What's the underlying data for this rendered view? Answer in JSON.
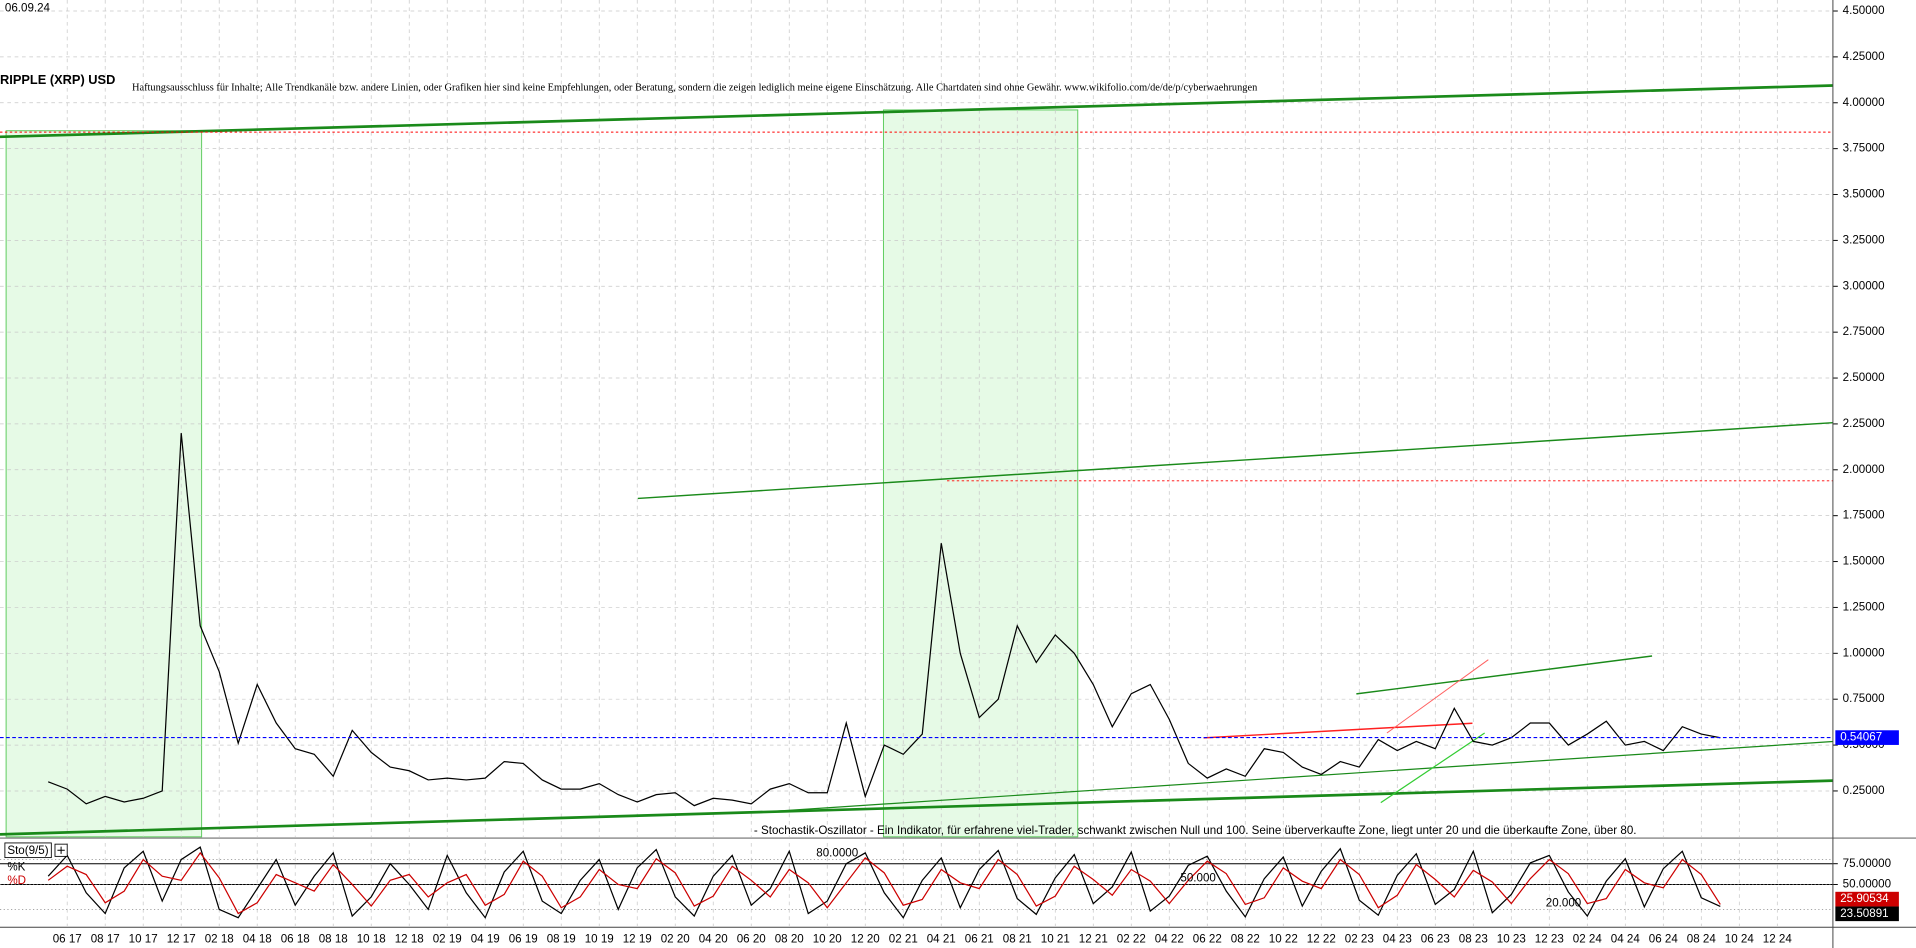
{
  "chart_data": [
    {
      "type": "line",
      "title": "RIPPLE (XRP) USD",
      "date": "06.09.24",
      "disclaimer": "Haftungsausschluss für Inhalte; Alle Trendkanäle bzw. andere Linien, oder Grafiken hier sind keine Empfehlungen, oder Beratung, sondern die zeigen lediglich meine eigene Einschätzung. Alle Chartdaten sind ohne Gewähr.  www.wikifolio.com/de/de/p/cyberwaehrungen",
      "annotation": "- Stochastik-Oszillator - Ein Indikator, für erfahrene viel-Trader, schwankt zwischen Null und 100. Seine überverkaufte Zone, liegt unter 20 und die überkaufte Zone, über 80.",
      "categories": [
        null,
        "06 17",
        null,
        "08 17",
        null,
        "10 17",
        null,
        "12 17",
        null,
        "02 18",
        null,
        "04 18",
        null,
        "06 18",
        null,
        "08 18",
        null,
        "10 18",
        null,
        "12 18",
        null,
        "02 19",
        null,
        "04 19",
        null,
        "06 19",
        null,
        "08 19",
        null,
        "10 19",
        null,
        "12 19",
        null,
        "02 20",
        null,
        "04 20",
        null,
        "06 20",
        null,
        "08 20",
        null,
        "10 20",
        null,
        "12 20",
        null,
        "02 21",
        null,
        "04 21",
        null,
        "06 21",
        null,
        "08 21",
        null,
        "10 21",
        null,
        "12 21",
        null,
        "02 22",
        null,
        "04 22",
        null,
        "06 22",
        null,
        "08 22",
        null,
        "10 22",
        null,
        "12 22",
        null,
        "02 23",
        null,
        "04 23",
        null,
        "06 23",
        null,
        "08 23",
        null,
        "10 23",
        null,
        "12 23",
        null,
        "02 24",
        null,
        "04 24",
        null,
        "06 24",
        null,
        "08 24",
        null,
        "10 24",
        null,
        "12 24"
      ],
      "series": [
        {
          "color": "#000000",
          "values": [
            0.3,
            0.26,
            0.18,
            0.22,
            0.19,
            0.21,
            0.25,
            2.2,
            1.15,
            0.9,
            0.51,
            0.83,
            0.62,
            0.48,
            0.45,
            0.33,
            0.58,
            0.46,
            0.38,
            0.36,
            0.31,
            0.32,
            0.31,
            0.32,
            0.41,
            0.4,
            0.31,
            0.26,
            0.26,
            0.29,
            0.23,
            0.19,
            0.23,
            0.24,
            0.17,
            0.21,
            0.2,
            0.18,
            0.26,
            0.29,
            0.24,
            0.24,
            0.62,
            0.22,
            0.5,
            0.45,
            0.56,
            1.6,
            1.0,
            0.65,
            0.75,
            1.15,
            0.95,
            1.1,
            1.0,
            0.83,
            0.6,
            0.78,
            0.83,
            0.64,
            0.4,
            0.32,
            0.37,
            0.33,
            0.48,
            0.46,
            0.38,
            0.34,
            0.41,
            0.38,
            0.53,
            0.47,
            0.52,
            0.48,
            0.7,
            0.52,
            0.5,
            0.54,
            0.62,
            0.62,
            0.5,
            0.56,
            0.63,
            0.5,
            0.52,
            0.47,
            0.6,
            0.56,
            0.54,
            null,
            null,
            null
          ]
        }
      ],
      "ylim": [
        0,
        4.56
      ],
      "yticks": [
        {
          "value": 0.25,
          "label": "0.25000"
        },
        {
          "value": 0.5,
          "label": "0.50000"
        },
        {
          "value": 0.75,
          "label": "0.75000"
        },
        {
          "value": 1,
          "label": "1.00000"
        },
        {
          "value": 1.25,
          "label": "1.25000"
        },
        {
          "value": 1.5,
          "label": "1.50000"
        },
        {
          "value": 1.75,
          "label": "1.75000"
        },
        {
          "value": 2,
          "label": "2.00000"
        },
        {
          "value": 2.25,
          "label": "2.25000"
        },
        {
          "value": 2.5,
          "label": "2.50000"
        },
        {
          "value": 2.75,
          "label": "2.75000"
        },
        {
          "value": 3,
          "label": "3.00000"
        },
        {
          "value": 3.25,
          "label": "3.25000"
        },
        {
          "value": 3.5,
          "label": "3.50000"
        },
        {
          "value": 3.75,
          "label": "3.75000"
        },
        {
          "value": 4,
          "label": "4.00000"
        },
        {
          "value": 4.25,
          "label": "4.25000"
        },
        {
          "value": 4.5,
          "label": "4.50000"
        }
      ],
      "grid": true,
      "last_value": 0.54067,
      "last_value_color": "#0000ff",
      "reference_lines": {
        "values": [
          3.84,
          1.94
        ],
        "color": "#ff0000"
      }
    },
    {
      "type": "line",
      "title": "Sto(9/5)",
      "series": [
        {
          "name": "%K",
          "color": "#000000",
          "values": [
            60,
            85,
            40,
            15,
            70,
            90,
            30,
            80,
            95,
            20,
            10,
            45,
            80,
            25,
            60,
            88,
            12,
            35,
            75,
            50,
            20,
            85,
            40,
            10,
            65,
            90,
            30,
            15,
            55,
            80,
            20,
            70,
            92,
            35,
            12,
            60,
            85,
            25,
            45,
            90,
            15,
            30,
            75,
            88,
            40,
            10,
            55,
            82,
            22,
            68,
            91,
            33,
            14,
            58,
            86,
            27,
            47,
            89,
            18,
            36,
            73,
            84,
            42,
            11,
            57,
            83,
            24,
            66,
            93,
            31,
            13,
            61,
            87,
            26,
            44,
            90,
            16,
            38,
            76,
            85,
            41,
            12,
            54,
            81,
            23,
            69,
            90,
            34,
            23.50891
          ]
        },
        {
          "name": "%D",
          "color": "#cc0000",
          "values": [
            55,
            72,
            62,
            28,
            42,
            80,
            60,
            55,
            88,
            58,
            15,
            28,
            62,
            52,
            42,
            74,
            50,
            24,
            55,
            62,
            35,
            52,
            62,
            25,
            38,
            78,
            60,
            22,
            35,
            68,
            50,
            45,
            81,
            64,
            24,
            36,
            72,
            55,
            35,
            68,
            52,
            22,
            52,
            82,
            64,
            25,
            32,
            68,
            52,
            45,
            80,
            62,
            24,
            36,
            72,
            56,
            37,
            68,
            54,
            27,
            55,
            78,
            63,
            26,
            34,
            70,
            54,
            45,
            80,
            62,
            22,
            37,
            74,
            56,
            35,
            67,
            53,
            27,
            57,
            80,
            63,
            27,
            33,
            68,
            52,
            46,
            80,
            62,
            25.90534
          ]
        }
      ],
      "ylim": [
        0,
        100
      ],
      "yticks": [
        {
          "value": 50,
          "label": "50.00000"
        },
        {
          "value": 75,
          "label": "75.00000"
        }
      ],
      "levels": [
        {
          "value": 80,
          "label": "80.0000"
        },
        {
          "value": 50,
          "label": "50.000"
        },
        {
          "value": 20,
          "label": "20.000"
        }
      ]
    }
  ]
}
